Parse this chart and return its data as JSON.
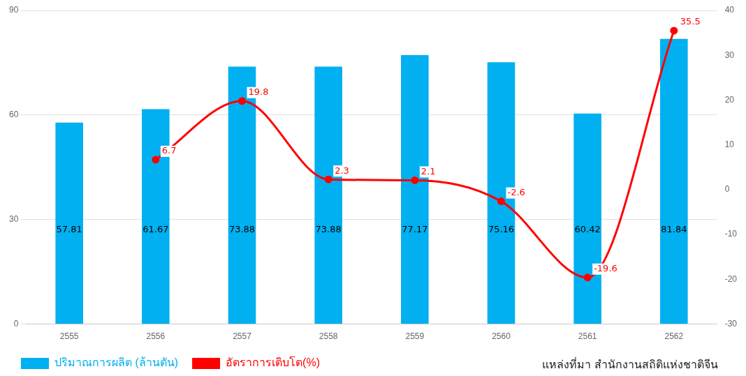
{
  "chart_data": {
    "type": "bar",
    "categories": [
      "2555",
      "2556",
      "2557",
      "2558",
      "2559",
      "2560",
      "2561",
      "2562"
    ],
    "series": [
      {
        "name": "ปริมาณการผลิต (ล้านตัน)",
        "color": "#00b0f0",
        "values": [
          57.81,
          61.67,
          73.88,
          73.88,
          77.17,
          75.16,
          60.42,
          81.84
        ]
      },
      {
        "name": "อัตราการเติบโต(%)",
        "type": "line",
        "axis": "y2",
        "color": "#ff0000",
        "marker": "circle",
        "values": [
          null,
          6.7,
          19.8,
          2.3,
          2.1,
          -2.6,
          -19.6,
          35.5
        ]
      }
    ],
    "ylim": [
      0,
      90
    ],
    "yticks": [
      0,
      30,
      60,
      90
    ],
    "y2lim": [
      -30,
      40
    ],
    "y2ticks": [
      -30,
      -20,
      -10,
      0,
      10,
      20,
      30,
      40
    ],
    "grid": "y",
    "legend": "bottom",
    "data_labels": true,
    "annotations": [
      "แหล่งที่มา สำนักงานสถิติแห่งชาติจีน"
    ]
  }
}
